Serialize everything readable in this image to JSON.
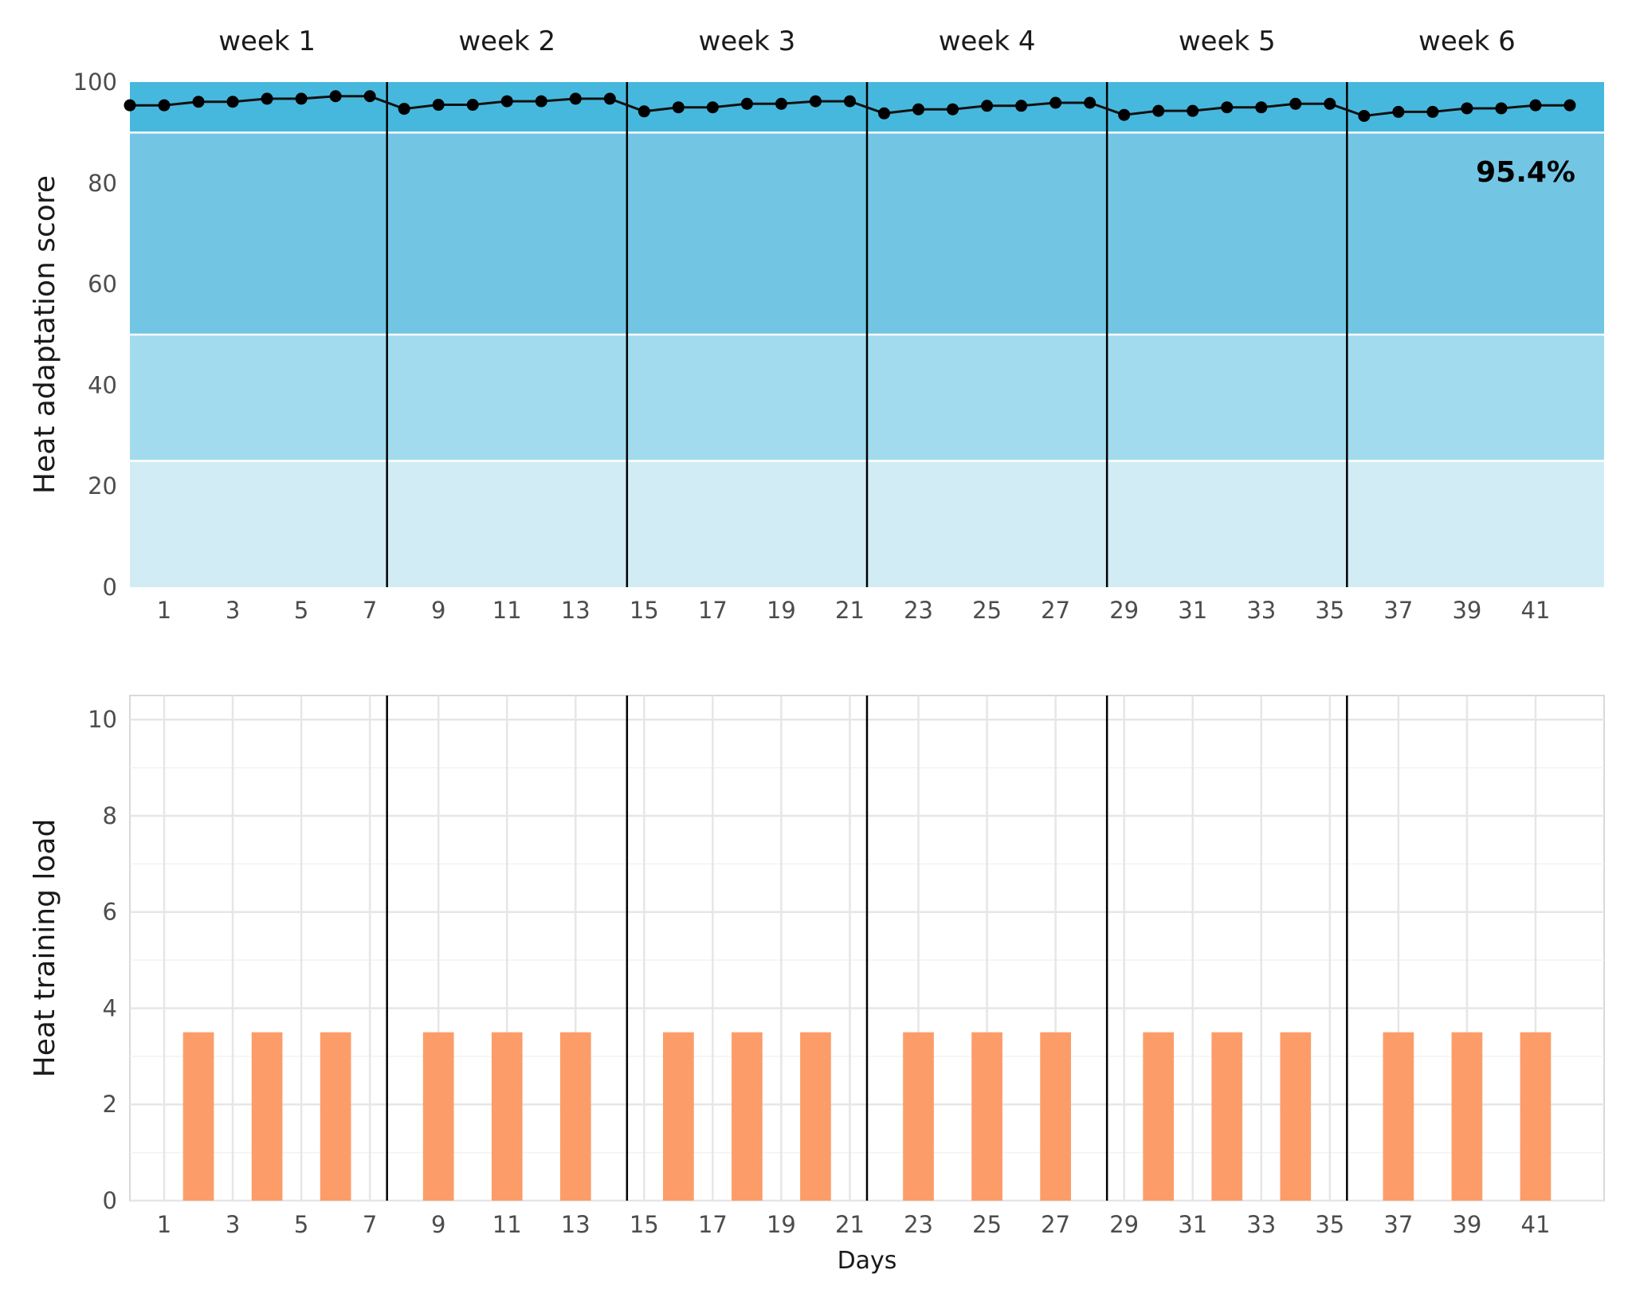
{
  "chart_data": [
    {
      "type": "line",
      "panel": "top",
      "ylabel": "Heat adaptation score",
      "ylim": [
        0,
        100
      ],
      "yticks": [
        0,
        20,
        40,
        60,
        80,
        100
      ],
      "xlim": [
        0,
        43
      ],
      "xticks": [
        1,
        3,
        5,
        7,
        9,
        11,
        13,
        15,
        17,
        19,
        21,
        23,
        25,
        27,
        29,
        31,
        33,
        35,
        37,
        39,
        41
      ],
      "week_labels": [
        "week 1",
        "week 2",
        "week 3",
        "week 4",
        "week 5",
        "week 6"
      ],
      "week_boundaries": [
        7.5,
        14.5,
        21.5,
        28.5,
        35.5
      ],
      "bands": [
        {
          "from": 0,
          "to": 25,
          "color": "#d1ecf5"
        },
        {
          "from": 25,
          "to": 50,
          "color": "#a3dbee"
        },
        {
          "from": 50,
          "to": 90,
          "color": "#72c6e4"
        },
        {
          "from": 90,
          "to": 100,
          "color": "#47b8dd"
        }
      ],
      "annotation": "95.4%",
      "series": [
        {
          "color": "#000000",
          "x": [
            0,
            1,
            2,
            3,
            4,
            5,
            6,
            7,
            8,
            9,
            10,
            11,
            12,
            13,
            14,
            15,
            16,
            17,
            18,
            19,
            20,
            21,
            22,
            23,
            24,
            25,
            26,
            27,
            28,
            29,
            30,
            31,
            32,
            33,
            34,
            35,
            36,
            37,
            38,
            39,
            40,
            41,
            42
          ],
          "values": [
            95.4,
            95.4,
            96.1,
            96.1,
            96.7,
            96.7,
            97.2,
            97.2,
            94.7,
            95.5,
            95.5,
            96.2,
            96.2,
            96.7,
            96.7,
            94.2,
            95.0,
            95.0,
            95.7,
            95.7,
            96.2,
            96.2,
            93.8,
            94.6,
            94.6,
            95.3,
            95.3,
            95.9,
            95.9,
            93.5,
            94.3,
            94.3,
            95.0,
            95.0,
            95.7,
            95.7,
            93.3,
            94.1,
            94.1,
            94.8,
            94.8,
            95.4,
            95.4
          ]
        }
      ]
    },
    {
      "type": "bar",
      "panel": "bottom",
      "ylabel": "Heat training load",
      "xlabel": "Days",
      "ylim": [
        0,
        10.5
      ],
      "yticks": [
        0,
        2,
        4,
        6,
        8,
        10
      ],
      "xlim": [
        0,
        43
      ],
      "xticks": [
        1,
        3,
        5,
        7,
        9,
        11,
        13,
        15,
        17,
        19,
        21,
        23,
        25,
        27,
        29,
        31,
        33,
        35,
        37,
        39,
        41
      ],
      "week_boundaries": [
        7.5,
        14.5,
        21.5,
        28.5,
        35.5
      ],
      "bar_color": "#fc9d69",
      "x": [
        2,
        4,
        6,
        9,
        11,
        13,
        16,
        18,
        20,
        23,
        25,
        27,
        30,
        32,
        34,
        37,
        39,
        41
      ],
      "values": [
        3.5,
        3.5,
        3.5,
        3.5,
        3.5,
        3.5,
        3.5,
        3.5,
        3.5,
        3.5,
        3.5,
        3.5,
        3.5,
        3.5,
        3.5,
        3.5,
        3.5,
        3.5
      ]
    }
  ]
}
